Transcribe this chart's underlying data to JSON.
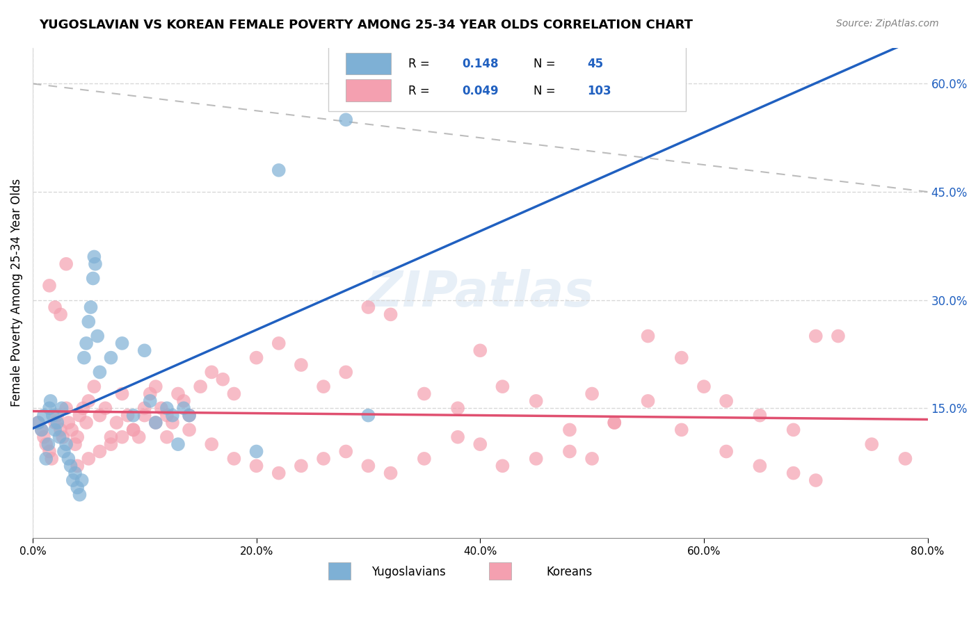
{
  "title": "YUGOSLAVIAN VS KOREAN FEMALE POVERTY AMONG 25-34 YEAR OLDS CORRELATION CHART",
  "source": "Source: ZipAtlas.com",
  "xlabel": "",
  "ylabel": "Female Poverty Among 25-34 Year Olds",
  "xlim": [
    0,
    0.8
  ],
  "ylim": [
    -0.03,
    0.65
  ],
  "xticks": [
    0.0,
    0.2,
    0.4,
    0.6,
    0.8
  ],
  "xtick_labels": [
    "0.0%",
    "20.0%",
    "40.0%",
    "60.0%",
    "80.0%"
  ],
  "right_yticks": [
    0.15,
    0.3,
    0.45,
    0.6
  ],
  "right_ytick_labels": [
    "15.0%",
    "30.0%",
    "45.0%",
    "60.0%"
  ],
  "watermark": "ZIPatlas",
  "legend_r1": "R =  0.148",
  "legend_n1": "N =  45",
  "legend_r2": "R = 0.049",
  "legend_n2": "N = 103",
  "blue_color": "#7EB0D5",
  "pink_color": "#F4A0B0",
  "blue_line_color": "#2060C0",
  "pink_line_color": "#E05070",
  "dash_line_color": "#A0A0A0",
  "grid_color": "#D8D8D8",
  "yug_x": [
    0.005,
    0.008,
    0.01,
    0.012,
    0.014,
    0.015,
    0.016,
    0.018,
    0.02,
    0.022,
    0.024,
    0.026,
    0.028,
    0.03,
    0.032,
    0.034,
    0.036,
    0.038,
    0.04,
    0.042,
    0.044,
    0.046,
    0.048,
    0.05,
    0.052,
    0.054,
    0.055,
    0.056,
    0.058,
    0.06,
    0.07,
    0.08,
    0.09,
    0.1,
    0.105,
    0.11,
    0.12,
    0.125,
    0.13,
    0.135,
    0.14,
    0.2,
    0.22,
    0.28,
    0.3
  ],
  "yug_y": [
    0.13,
    0.12,
    0.14,
    0.08,
    0.1,
    0.15,
    0.16,
    0.14,
    0.12,
    0.13,
    0.11,
    0.15,
    0.09,
    0.1,
    0.08,
    0.07,
    0.05,
    0.06,
    0.04,
    0.03,
    0.05,
    0.22,
    0.24,
    0.27,
    0.29,
    0.33,
    0.36,
    0.35,
    0.25,
    0.2,
    0.22,
    0.24,
    0.14,
    0.23,
    0.16,
    0.13,
    0.15,
    0.14,
    0.1,
    0.15,
    0.14,
    0.09,
    0.48,
    0.55,
    0.14
  ],
  "kor_x": [
    0.005,
    0.008,
    0.01,
    0.012,
    0.015,
    0.017,
    0.02,
    0.022,
    0.025,
    0.027,
    0.03,
    0.032,
    0.035,
    0.038,
    0.04,
    0.042,
    0.045,
    0.048,
    0.05,
    0.055,
    0.06,
    0.065,
    0.07,
    0.075,
    0.08,
    0.085,
    0.09,
    0.095,
    0.1,
    0.105,
    0.11,
    0.115,
    0.12,
    0.125,
    0.13,
    0.135,
    0.14,
    0.15,
    0.16,
    0.17,
    0.18,
    0.2,
    0.22,
    0.24,
    0.26,
    0.28,
    0.3,
    0.32,
    0.35,
    0.38,
    0.4,
    0.42,
    0.45,
    0.48,
    0.5,
    0.52,
    0.55,
    0.58,
    0.6,
    0.62,
    0.65,
    0.68,
    0.7,
    0.72,
    0.75,
    0.78,
    0.5,
    0.52,
    0.55,
    0.58,
    0.62,
    0.65,
    0.68,
    0.7,
    0.42,
    0.45,
    0.48,
    0.4,
    0.38,
    0.35,
    0.32,
    0.3,
    0.28,
    0.26,
    0.24,
    0.22,
    0.2,
    0.18,
    0.16,
    0.14,
    0.12,
    0.11,
    0.1,
    0.09,
    0.08,
    0.07,
    0.06,
    0.05,
    0.04,
    0.03,
    0.025,
    0.02,
    0.015
  ],
  "kor_y": [
    0.13,
    0.12,
    0.11,
    0.1,
    0.09,
    0.08,
    0.13,
    0.14,
    0.12,
    0.11,
    0.15,
    0.13,
    0.12,
    0.1,
    0.11,
    0.14,
    0.15,
    0.13,
    0.16,
    0.18,
    0.14,
    0.15,
    0.11,
    0.13,
    0.17,
    0.14,
    0.12,
    0.11,
    0.15,
    0.17,
    0.18,
    0.15,
    0.14,
    0.13,
    0.17,
    0.16,
    0.14,
    0.18,
    0.2,
    0.19,
    0.17,
    0.22,
    0.24,
    0.21,
    0.18,
    0.2,
    0.29,
    0.28,
    0.17,
    0.15,
    0.23,
    0.18,
    0.16,
    0.12,
    0.08,
    0.13,
    0.25,
    0.22,
    0.18,
    0.16,
    0.14,
    0.12,
    0.25,
    0.25,
    0.1,
    0.08,
    0.17,
    0.13,
    0.16,
    0.12,
    0.09,
    0.07,
    0.06,
    0.05,
    0.07,
    0.08,
    0.09,
    0.1,
    0.11,
    0.08,
    0.06,
    0.07,
    0.09,
    0.08,
    0.07,
    0.06,
    0.07,
    0.08,
    0.1,
    0.12,
    0.11,
    0.13,
    0.14,
    0.12,
    0.11,
    0.1,
    0.09,
    0.08,
    0.07,
    0.35,
    0.28,
    0.29,
    0.32
  ]
}
